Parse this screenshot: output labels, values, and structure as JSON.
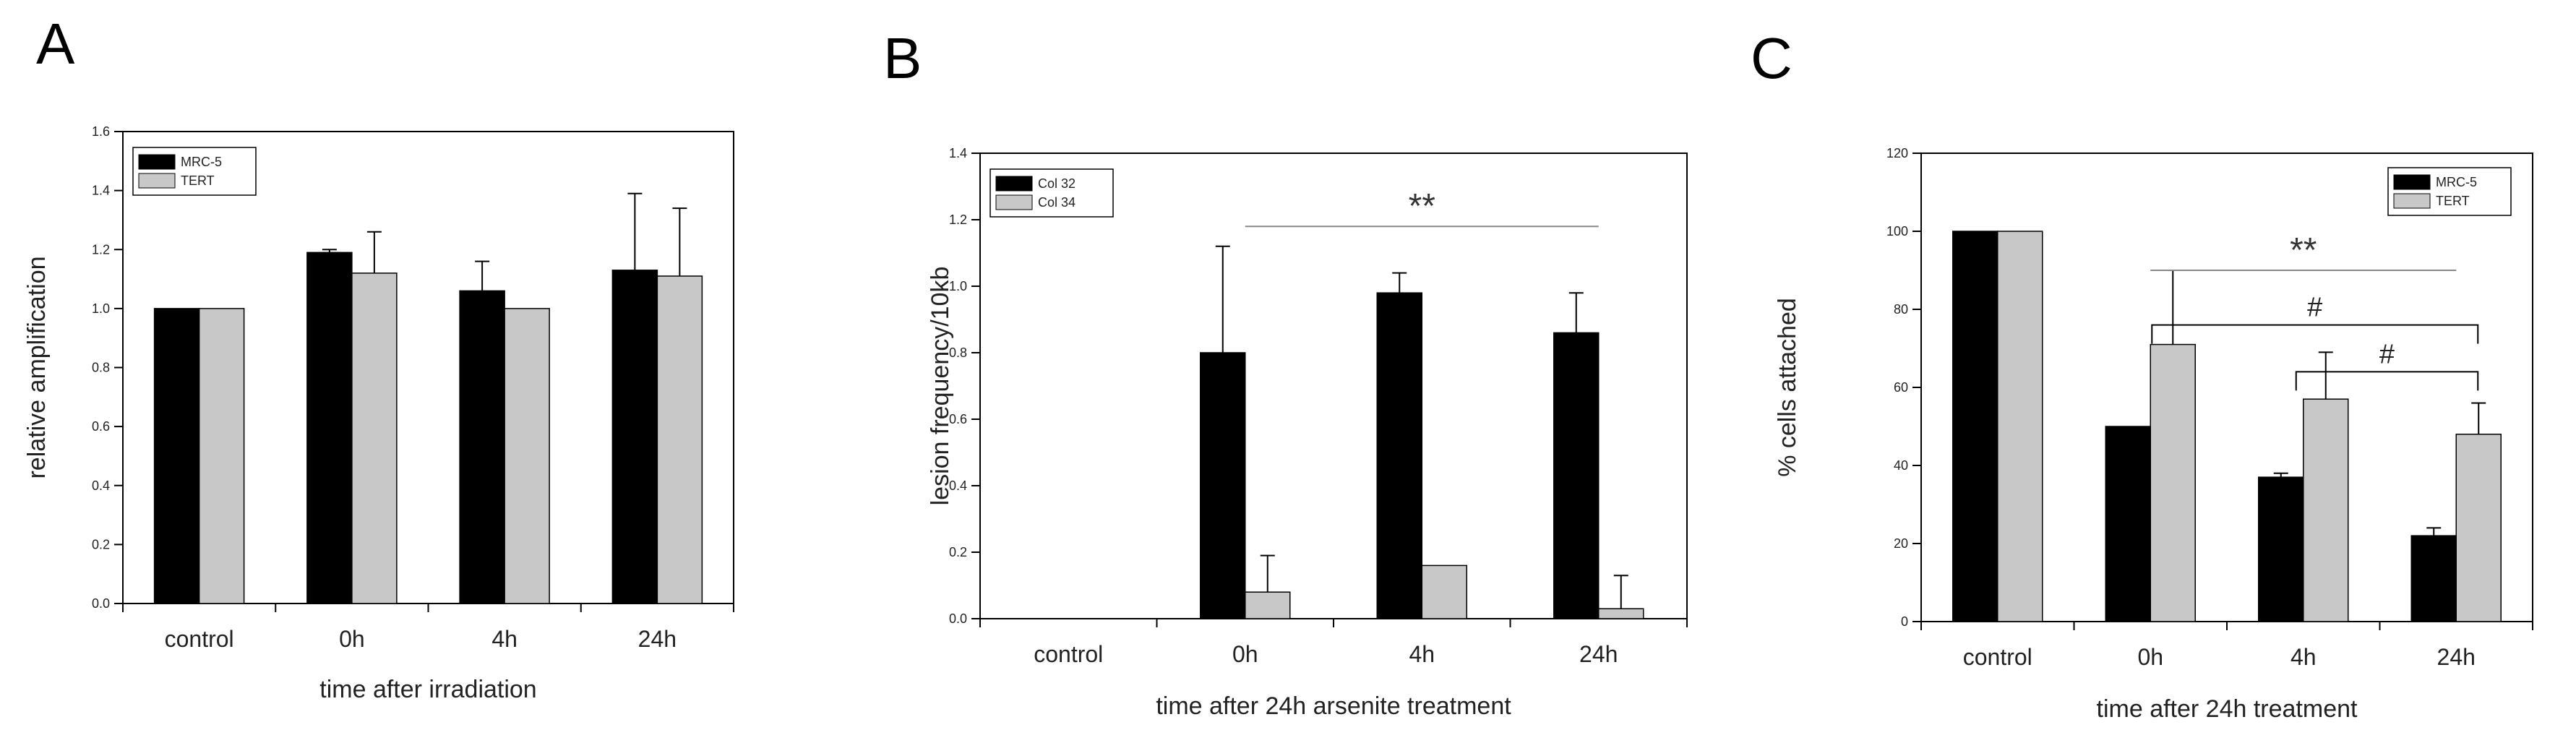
{
  "colors": {
    "series1": "#000000",
    "series2": "#c8c8c8",
    "axis": "#000000",
    "sigline": "#888888"
  },
  "chart_data": [
    {
      "panel": "A",
      "type": "bar",
      "title": "",
      "xlabel": "time after irradiation",
      "ylabel": "relative amplification",
      "categories": [
        "control",
        "0h",
        "4h",
        "24h"
      ],
      "ylim": [
        0,
        1.6
      ],
      "yticks": [
        0.0,
        0.2,
        0.4,
        0.6,
        0.8,
        1.0,
        1.2,
        1.4,
        1.6
      ],
      "tick_decimals": 1,
      "grid": false,
      "legend_position": "top-left",
      "series": [
        {
          "name": "MRC-5",
          "values": [
            1.0,
            1.19,
            1.06,
            1.13
          ],
          "errors": [
            0,
            0.01,
            0.1,
            0.26
          ]
        },
        {
          "name": "TERT",
          "values": [
            1.0,
            1.12,
            1.0,
            1.11
          ],
          "errors": [
            0,
            0.14,
            0,
            0.23
          ]
        }
      ],
      "annotations": []
    },
    {
      "panel": "B",
      "type": "bar",
      "title": "",
      "xlabel": "time after 24h arsenite treatment",
      "ylabel": "lesion frequency/10kb",
      "categories": [
        "control",
        "0h",
        "4h",
        "24h"
      ],
      "ylim": [
        0,
        1.4
      ],
      "yticks": [
        0.0,
        0.2,
        0.4,
        0.6,
        0.8,
        1.0,
        1.2,
        1.4
      ],
      "tick_decimals": 1,
      "grid": false,
      "legend_position": "top-left",
      "series": [
        {
          "name": "Col 32",
          "values": [
            0,
            0.8,
            0.98,
            0.86
          ],
          "errors": [
            0,
            0.32,
            0.06,
            0.12
          ]
        },
        {
          "name": "Col 34",
          "values": [
            0,
            0.08,
            0.16,
            0.03
          ],
          "errors": [
            0,
            0.11,
            0,
            0.1
          ]
        }
      ],
      "annotations": [
        {
          "text": "**",
          "from": "0h",
          "to": "24h",
          "y": 1.18,
          "style": "line"
        }
      ]
    },
    {
      "panel": "C",
      "type": "bar",
      "title": "",
      "xlabel": "time after 24h treatment",
      "ylabel": "% cells attached",
      "categories": [
        "control",
        "0h",
        "4h",
        "24h"
      ],
      "ylim": [
        0,
        120
      ],
      "yticks": [
        0,
        20,
        40,
        60,
        80,
        100,
        120
      ],
      "tick_decimals": 0,
      "grid": false,
      "legend_position": "top-right",
      "series": [
        {
          "name": "MRC-5",
          "values": [
            100,
            50,
            37,
            22
          ],
          "errors": [
            0,
            0,
            1,
            2
          ]
        },
        {
          "name": "TERT",
          "values": [
            100,
            71,
            57,
            48
          ],
          "errors": [
            0,
            19,
            12,
            8
          ]
        }
      ],
      "annotations": [
        {
          "text": "**",
          "from": "0h",
          "to": "24h",
          "y": 90,
          "style": "line"
        },
        {
          "text": "#",
          "from": "0h",
          "to": "24h",
          "y": 76,
          "style": "bracket"
        },
        {
          "text": "#",
          "from": "4h",
          "to": "24h",
          "y": 64,
          "style": "bracket"
        }
      ]
    }
  ]
}
